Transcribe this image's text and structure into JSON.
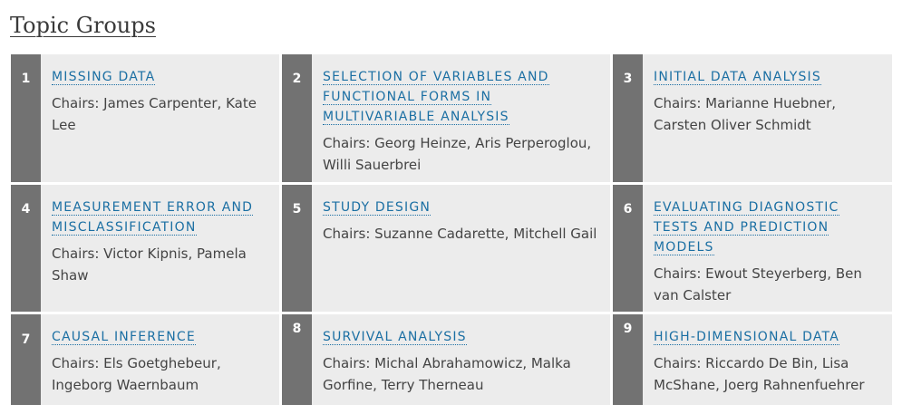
{
  "page_title": "Topic Groups",
  "groups": [
    {
      "number": "1",
      "title": "MISSING DATA",
      "chairs": "Chairs: James Carpenter, Kate Lee"
    },
    {
      "number": "2",
      "title": "SELECTION OF VARIABLES AND FUNCTIONAL FORMS IN MULTIVARIABLE ANALYSIS",
      "chairs": "Chairs: Georg Heinze, Aris Perperoglou, Willi Sauerbrei"
    },
    {
      "number": "3",
      "title": "INITIAL DATA ANALYSIS",
      "chairs": "Chairs: Marianne Huebner, Carsten Oliver Schmidt"
    },
    {
      "number": "4",
      "title": "MEASUREMENT ERROR AND MISCLASSIFICATION",
      "chairs": "Chairs: Victor Kipnis, Pamela Shaw"
    },
    {
      "number": "5",
      "title": "STUDY DESIGN",
      "chairs": "Chairs: Suzanne Cadarette, Mitchell Gail"
    },
    {
      "number": "6",
      "title": "EVALUATING DIAGNOSTIC TESTS AND PREDICTION MODELS",
      "chairs": "Chairs: Ewout Steyerberg, Ben van Calster"
    },
    {
      "number": "7",
      "title": "CAUSAL INFERENCE",
      "chairs": "Chairs: Els Goetghebeur, Ingeborg Waernbaum"
    },
    {
      "number": "8",
      "title": "SURVIVAL ANALYSIS",
      "chairs": "Chairs: Michal Abrahamowicz, Malka Gorfine, Terry Therneau"
    },
    {
      "number": "9",
      "title": "HIGH-DIMENSIONAL DATA",
      "chairs": "Chairs: Riccardo De Bin, Lisa McShane, Joerg Rahnenfuehrer"
    }
  ]
}
